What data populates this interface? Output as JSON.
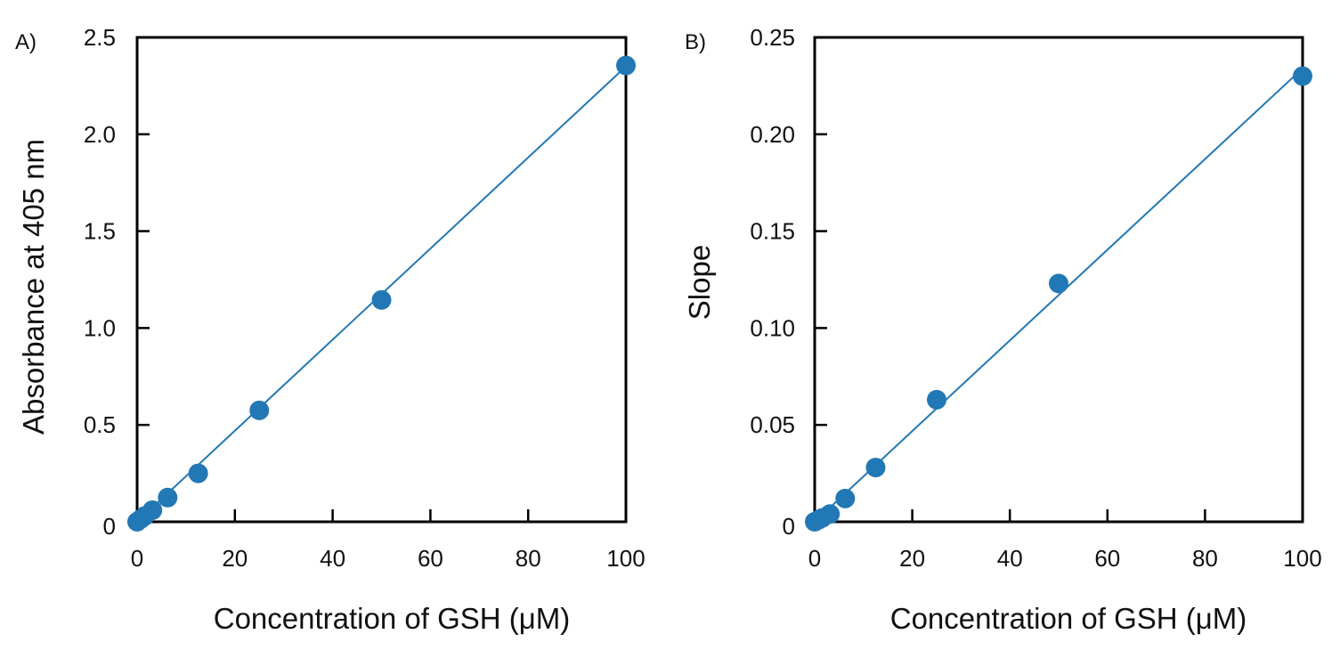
{
  "colors": {
    "series": "#2278b5",
    "axes": "#000000",
    "background": "#ffffff"
  },
  "chart_data": [
    {
      "type": "scatter",
      "panel_label": "A)",
      "xlabel": "Concentration of GSH (μM)",
      "ylabel": "Absorbance at 405 nm",
      "xlim": [
        0,
        100
      ],
      "ylim": [
        0,
        2.5
      ],
      "xticks": [
        {
          "value": 0,
          "label": "0"
        },
        {
          "value": 20,
          "label": "20"
        },
        {
          "value": 40,
          "label": "40"
        },
        {
          "value": 60,
          "label": "60"
        },
        {
          "value": 80,
          "label": "80"
        },
        {
          "value": 100,
          "label": "100"
        }
      ],
      "yticks": [
        {
          "value": 0,
          "label": "0"
        },
        {
          "value": 0.5,
          "label": "0.5"
        },
        {
          "value": 1.0,
          "label": "1.0"
        },
        {
          "value": 1.5,
          "label": "1.5"
        },
        {
          "value": 2.0,
          "label": "2.0"
        },
        {
          "value": 2.5,
          "label": "2.5"
        }
      ],
      "grid": false,
      "series": [
        {
          "x": [
            0,
            0.78,
            1.56,
            3.13,
            6.25,
            12.5,
            25,
            50,
            100
          ],
          "y": [
            0.0,
            0.015,
            0.03,
            0.06,
            0.125,
            0.25,
            0.575,
            1.145,
            2.355
          ]
        }
      ],
      "fit_line": {
        "type": "linear",
        "x": [
          0,
          100
        ],
        "y": [
          0.0,
          2.35
        ]
      }
    },
    {
      "type": "scatter",
      "panel_label": "B)",
      "xlabel": "Concentration of GSH (μM)",
      "ylabel": "Slope",
      "xlim": [
        0,
        100
      ],
      "ylim": [
        0,
        0.25
      ],
      "xticks": [
        {
          "value": 0,
          "label": "0"
        },
        {
          "value": 20,
          "label": "20"
        },
        {
          "value": 40,
          "label": "40"
        },
        {
          "value": 60,
          "label": "60"
        },
        {
          "value": 80,
          "label": "80"
        },
        {
          "value": 100,
          "label": "100"
        }
      ],
      "yticks": [
        {
          "value": 0,
          "label": "0"
        },
        {
          "value": 0.05,
          "label": "0.05"
        },
        {
          "value": 0.1,
          "label": "0.10"
        },
        {
          "value": 0.15,
          "label": "0.15"
        },
        {
          "value": 0.2,
          "label": "0.20"
        },
        {
          "value": 0.25,
          "label": "0.25"
        }
      ],
      "grid": false,
      "series": [
        {
          "x": [
            0,
            0.78,
            1.56,
            3.13,
            6.25,
            12.5,
            25,
            50,
            100
          ],
          "y": [
            0.0,
            0.001,
            0.002,
            0.004,
            0.012,
            0.028,
            0.063,
            0.123,
            0.23
          ]
        }
      ],
      "fit_line": {
        "type": "linear",
        "x": [
          0,
          100
        ],
        "y": [
          0.0,
          0.234
        ]
      }
    }
  ]
}
